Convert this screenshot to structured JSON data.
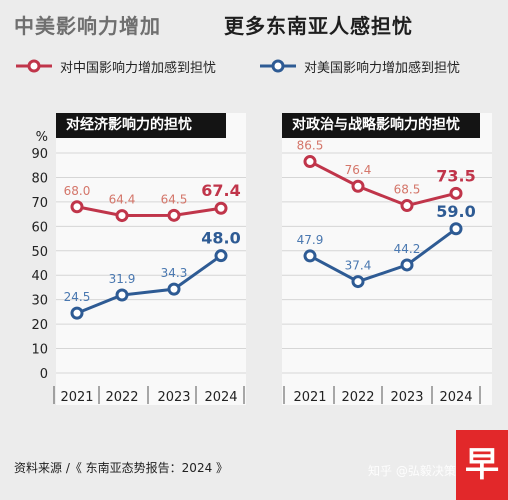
{
  "header": {
    "title_main": "中美影响力增加",
    "title_sub": "更多东南亚人感担忧"
  },
  "legend": [
    {
      "label": "对中国影响力增加感到担忧",
      "color": "#c0354a"
    },
    {
      "label": "对美国影响力增加感到担忧",
      "color": "#2e5b94"
    }
  ],
  "chart_data": {
    "type": "line",
    "y_unit": "%",
    "ylim": [
      0,
      90
    ],
    "y_ticks": [
      "0",
      "10",
      "20",
      "30",
      "40",
      "50",
      "60",
      "70",
      "80",
      "90"
    ],
    "grid": true,
    "panels": [
      {
        "title": "对经济影响力的担忧",
        "x": [
          "2021",
          "2022",
          "2023",
          "2024"
        ],
        "series": [
          {
            "name": "对中国影响力增加感到担忧",
            "color": "#c0354a",
            "label_color": "#d4766a",
            "values": [
              68.0,
              64.4,
              64.5,
              67.4
            ],
            "labels": [
              "68.0",
              "64.4",
              "64.5",
              "67.4"
            ]
          },
          {
            "name": "对美国影响力增加感到担忧",
            "color": "#2e5b94",
            "label_color": "#4a78b0",
            "values": [
              24.5,
              31.9,
              34.3,
              48.0
            ],
            "labels": [
              "24.5",
              "31.9",
              "34.3",
              "48.0"
            ]
          }
        ]
      },
      {
        "title": "对政治与战略影响力的担忧",
        "x": [
          "2021",
          "2022",
          "2023",
          "2024"
        ],
        "series": [
          {
            "name": "对中国影响力增加感到担忧",
            "color": "#c0354a",
            "label_color": "#d4766a",
            "values": [
              86.5,
              76.4,
              68.5,
              73.5
            ],
            "labels": [
              "86.5",
              "76.4",
              "68.5",
              "73.5"
            ]
          },
          {
            "name": "对美国影响力增加感到担忧",
            "color": "#2e5b94",
            "label_color": "#4a78b0",
            "values": [
              47.9,
              37.4,
              44.2,
              59.0
            ],
            "labels": [
              "47.9",
              "37.4",
              "44.2",
              "59.0"
            ]
          }
        ]
      }
    ]
  },
  "footer": {
    "source": "资料来源 /《 东南亚态势报告：2024 》",
    "watermark": "知乎 @弘毅决策"
  },
  "logo": {
    "glyph": "早",
    "color": "#e2282a"
  }
}
